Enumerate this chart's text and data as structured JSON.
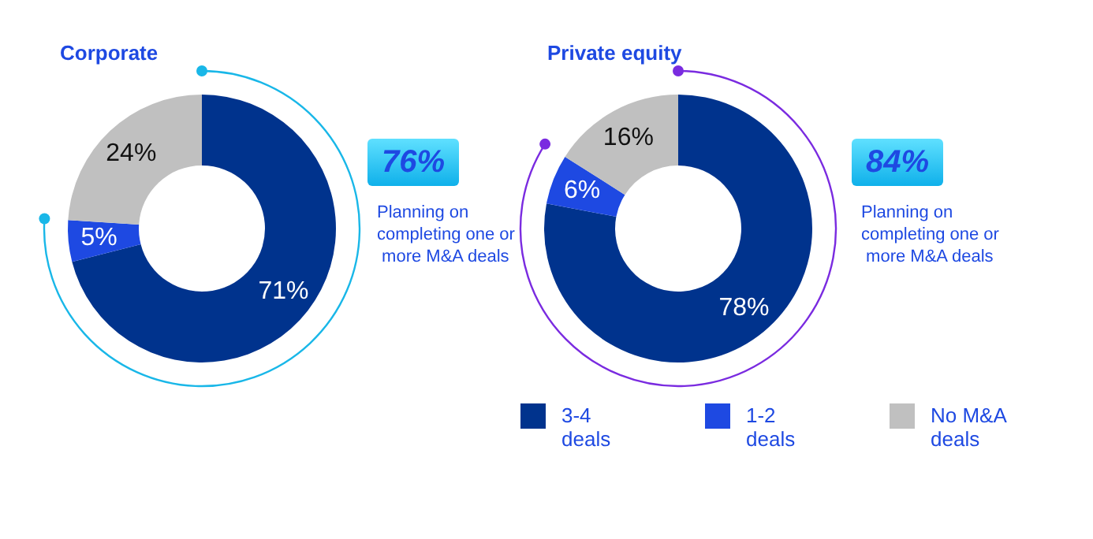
{
  "chart_data": [
    {
      "type": "donut",
      "title": "Corporate",
      "categories": [
        null,
        null,
        null
      ],
      "values": [
        71,
        5,
        24
      ],
      "colors": [
        "#00338d",
        "#1e49e2",
        "#c0c0c0"
      ],
      "value_labels": [
        "71%",
        "5%",
        "24%"
      ],
      "legend": false,
      "annotations": [
        "76%",
        "Planning on completing one or more M&A deals"
      ]
    },
    {
      "type": "donut",
      "title": "Private equity",
      "categories": [
        "3-4 deals",
        "1-2 deals",
        "No M&A deals"
      ],
      "values": [
        78,
        6,
        16
      ],
      "colors": [
        "#00338d",
        "#1e49e2",
        "#c0c0c0"
      ],
      "value_labels": [
        "78%",
        "6%",
        "16%"
      ],
      "legend": "bottom",
      "annotations": [
        "84%",
        "Planning on completing one or more M&A deals"
      ]
    }
  ]
}
